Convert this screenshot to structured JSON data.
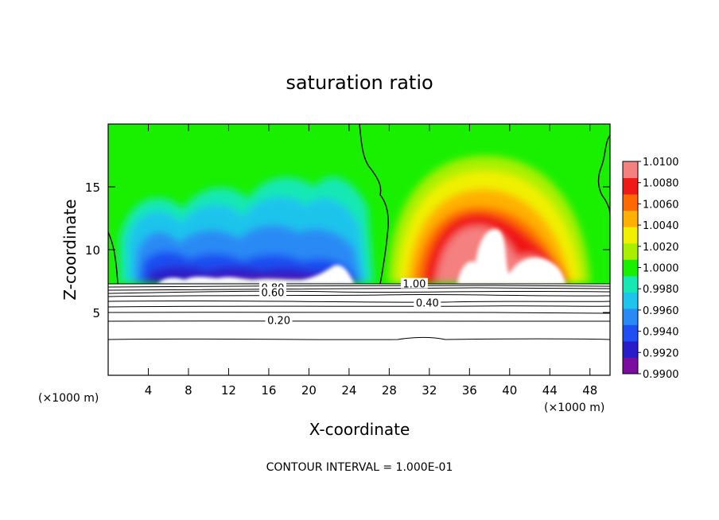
{
  "chart_data": {
    "type": "heatmap",
    "title": "saturation ratio",
    "xlabel": "X-coordinate",
    "ylabel": "Z-coordinate",
    "x_unit": "(×1000 m)",
    "z_unit": "(×1000 m)",
    "xlim": [
      0,
      50
    ],
    "ylim": [
      0,
      20
    ],
    "x_ticks": [
      4,
      8,
      12,
      16,
      20,
      24,
      28,
      32,
      36,
      40,
      44,
      48
    ],
    "y_ticks": [
      5,
      10,
      15
    ],
    "colorbar": {
      "min": 0.99,
      "max": 1.01,
      "labels": [
        "1.0100",
        "1.0080",
        "1.0060",
        "1.0040",
        "1.0020",
        "1.0000",
        "0.9980",
        "0.9960",
        "0.9940",
        "0.9920",
        "0.9900"
      ],
      "colors": [
        "#7a0da0",
        "#2a1cc8",
        "#1f4ef2",
        "#2a8af5",
        "#1ec4ec",
        "#15e8b4",
        "#18f000",
        "#a8f000",
        "#f0f000",
        "#ffb000",
        "#ff6a00",
        "#f01818",
        "#f58080"
      ]
    },
    "contour_labels": [
      {
        "text": "0.80",
        "x": 16.4,
        "z": 7.0
      },
      {
        "text": "0.60",
        "x": 16.4,
        "z": 6.6
      },
      {
        "text": "0.40",
        "x": 31.8,
        "z": 5.8
      },
      {
        "text": "0.20",
        "x": 17.0,
        "z": 4.4
      },
      {
        "text": "1.00",
        "x": 30.5,
        "z": 7.3
      }
    ],
    "contour_interval_label": "CONTOUR INTERVAL = 1.000E-01"
  }
}
